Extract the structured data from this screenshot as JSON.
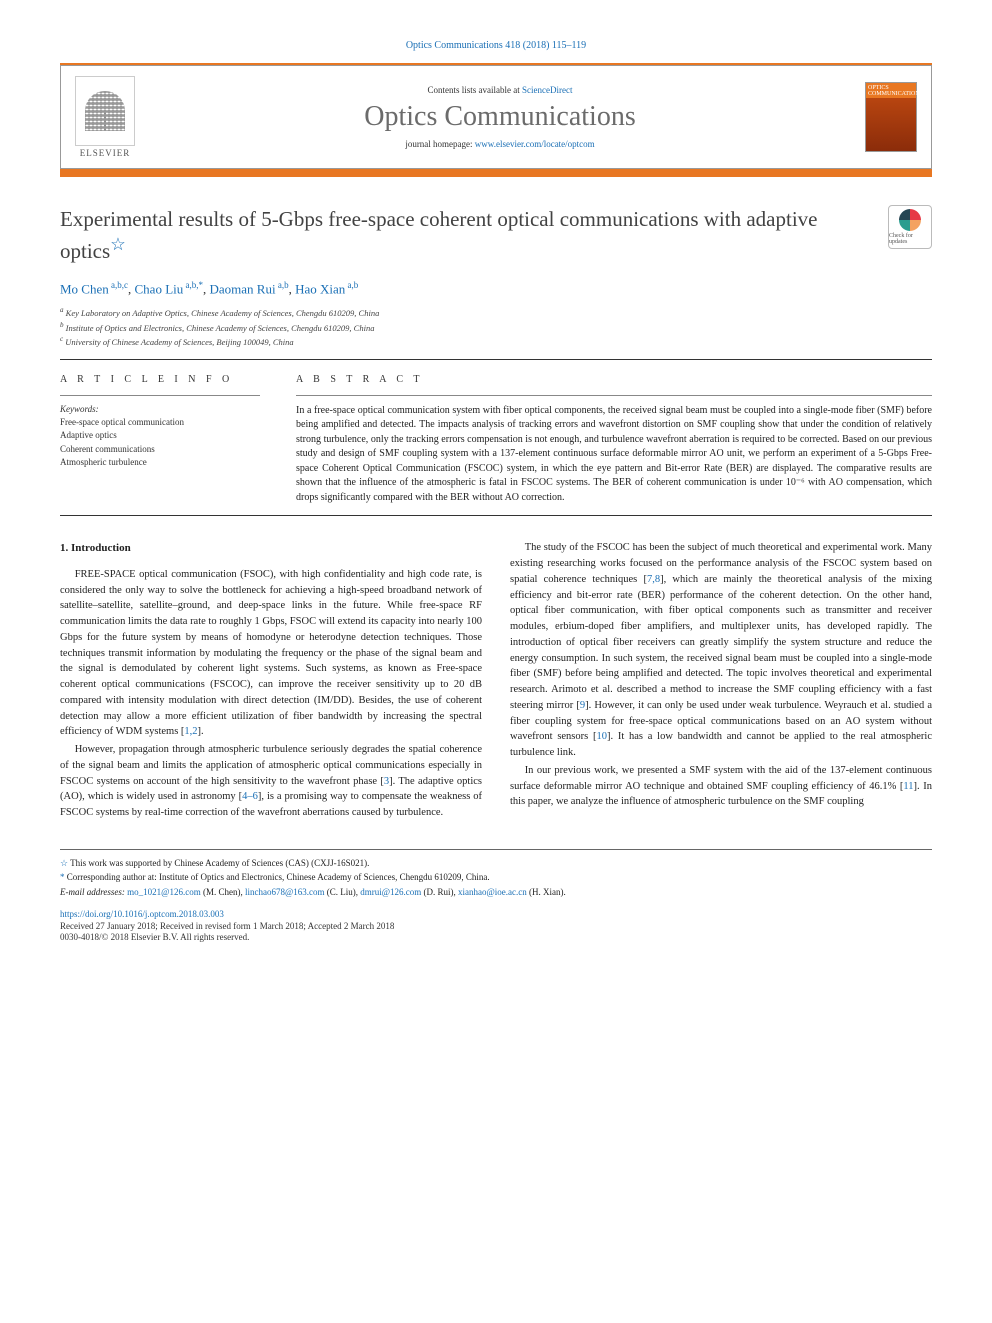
{
  "header": {
    "citation": "Optics Communications 418 (2018) 115–119",
    "contents_prefix": "Contents lists available at ",
    "contents_link": "ScienceDirect",
    "journal_name": "Optics Communications",
    "homepage_prefix": "journal homepage: ",
    "homepage_link": "www.elsevier.com/locate/optcom",
    "publisher_name": "ELSEVIER",
    "cover_text": "OPTICS COMMUNICATIONS",
    "check_updates_label": "Check for updates"
  },
  "colors": {
    "accent_orange": "#e87722",
    "link_blue": "#1a6fb5",
    "title_gray": "#424242",
    "journal_gray": "#6b6b6b",
    "text": "#222222",
    "rule": "#333333"
  },
  "article": {
    "title": "Experimental results of 5-Gbps free-space coherent optical communications with adaptive optics",
    "title_note_marker": "☆",
    "authors_html": "Mo Chen <sup>a,b,c</sup>, Chao Liu <sup>a,b,*</sup>, Daoman Rui <sup>a,b</sup>, Hao Xian <sup>a,b</sup>",
    "authors": [
      {
        "name": "Mo Chen",
        "affil": "a,b,c"
      },
      {
        "name": "Chao Liu",
        "affil": "a,b,*"
      },
      {
        "name": "Daoman Rui",
        "affil": "a,b"
      },
      {
        "name": "Hao Xian",
        "affil": "a,b"
      }
    ],
    "affiliations": {
      "a": "Key Laboratory on Adaptive Optics, Chinese Academy of Sciences, Chengdu 610209, China",
      "b": "Institute of Optics and Electronics, Chinese Academy of Sciences, Chengdu 610209, China",
      "c": "University of Chinese Academy of Sciences, Beijing 100049, China"
    }
  },
  "info": {
    "heading": "A R T I C L E   I N F O",
    "keywords_label": "Keywords:",
    "keywords": [
      "Free-space optical communication",
      "Adaptive optics",
      "Coherent communications",
      "Atmospheric turbulence"
    ]
  },
  "abstract": {
    "heading": "A B S T R A C T",
    "text": "In a free-space optical communication system with fiber optical components, the received signal beam must be coupled into a single-mode fiber (SMF) before being amplified and detected. The impacts analysis of tracking errors and wavefront distortion on SMF coupling show that under the condition of relatively strong turbulence, only the tracking errors compensation is not enough, and turbulence wavefront aberration is required to be corrected. Based on our previous study and design of SMF coupling system with a 137-element continuous surface deformable mirror AO unit, we perform an experiment of a 5-Gbps Free-space Coherent Optical Communication (FSCOC) system, in which the eye pattern and Bit-error Rate (BER) are displayed. The comparative results are shown that the influence of the atmospheric is fatal in FSCOC systems. The BER of coherent communication is under 10⁻⁶ with AO compensation, which drops significantly compared with the BER without AO correction."
  },
  "body": {
    "section_heading": "1. Introduction",
    "col1": [
      "FREE-SPACE optical communication (FSOC), with high confidentiality and high code rate, is considered the only way to solve the bottleneck for achieving a high-speed broadband network of satellite–satellite, satellite–ground, and deep-space links in the future. While free-space RF communication limits the data rate to roughly 1 Gbps, FSOC will extend its capacity into nearly 100 Gbps for the future system by means of homodyne or heterodyne detection techniques. Those techniques transmit information by modulating the frequency or the phase of the signal beam and the signal is demodulated by coherent light systems. Such systems, as known as Free-space coherent optical communications (FSCOC), can improve the receiver sensitivity up to 20 dB compared with intensity modulation with direct detection (IM/DD). Besides, the use of coherent detection may allow a more efficient utilization of fiber bandwidth by increasing the spectral efficiency of WDM systems [1,2].",
      "However, propagation through atmospheric turbulence seriously degrades the spatial coherence of the signal beam and limits the application of atmospheric optical communications especially in FSCOC systems on account of the high sensitivity to the wavefront phase [3]. The adaptive optics (AO), which is widely used in astronomy [4–6], is a promising way to compensate the weakness of FSCOC systems by real-time correction of the wavefront aberrations caused by turbulence."
    ],
    "col2": [
      "The study of the FSCOC has been the subject of much theoretical and experimental work. Many existing researching works focused on the performance analysis of the FSCOC system based on spatial coherence techniques [7,8], which are mainly the theoretical analysis of the mixing efficiency and bit-error rate (BER) performance of the coherent detection. On the other hand, optical fiber communication, with fiber optical components such as transmitter and receiver modules, erbium-doped fiber amplifiers, and multiplexer units, has developed rapidly. The introduction of optical fiber receivers can greatly simplify the system structure and reduce the energy consumption. In such system, the received signal beam must be coupled into a single-mode fiber (SMF) before being amplified and detected. The topic involves theoretical and experimental research. Arimoto et al. described a method to increase the SMF coupling efficiency with a fast steering mirror [9]. However, it can only be used under weak turbulence. Weyrauch et al. studied a fiber coupling system for free-space optical communications based on an AO system without wavefront sensors [10]. It has a low bandwidth and cannot be applied to the real atmospheric turbulence link.",
      "In our previous work, we presented a SMF system with the aid of the 137-element continuous surface deformable mirror AO technique and obtained SMF coupling efficiency of 46.1% [11]. In this paper, we analyze the influence of atmospheric turbulence on the SMF coupling"
    ],
    "refs": [
      "1",
      "2",
      "3",
      "4",
      "5",
      "6",
      "7",
      "8",
      "9",
      "10",
      "11"
    ]
  },
  "footnotes": {
    "funding_marker": "☆",
    "funding": "This work was supported by Chinese Academy of Sciences (CAS) (CXJJ-16S021).",
    "corr_marker": "*",
    "corresponding": "Corresponding author at: Institute of Optics and Electronics, Chinese Academy of Sciences, Chengdu 610209, China.",
    "email_label": "E-mail addresses:",
    "emails": [
      {
        "addr": "mo_1021@126.com",
        "who": "(M. Chen)"
      },
      {
        "addr": "linchao678@163.com",
        "who": "(C. Liu)"
      },
      {
        "addr": "dmrui@126.com",
        "who": "(D. Rui)"
      },
      {
        "addr": "xianhao@ioe.ac.cn",
        "who": "(H. Xian)"
      }
    ]
  },
  "footer": {
    "doi": "https://doi.org/10.1016/j.optcom.2018.03.003",
    "received": "Received 27 January 2018; Received in revised form 1 March 2018; Accepted 2 March 2018",
    "copyright": "0030-4018/© 2018 Elsevier B.V. All rights reserved."
  }
}
